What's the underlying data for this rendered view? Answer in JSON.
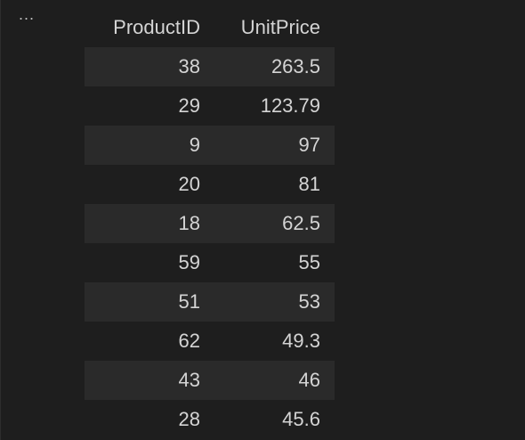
{
  "toolbar": {
    "more_label": "..."
  },
  "table": {
    "columns": [
      "ProductID",
      "UnitPrice"
    ],
    "rows": [
      [
        "38",
        "263.5"
      ],
      [
        "29",
        "123.79"
      ],
      [
        "9",
        "97"
      ],
      [
        "20",
        "81"
      ],
      [
        "18",
        "62.5"
      ],
      [
        "59",
        "55"
      ],
      [
        "51",
        "53"
      ],
      [
        "62",
        "49.3"
      ],
      [
        "43",
        "46"
      ],
      [
        "28",
        "45.6"
      ]
    ]
  }
}
